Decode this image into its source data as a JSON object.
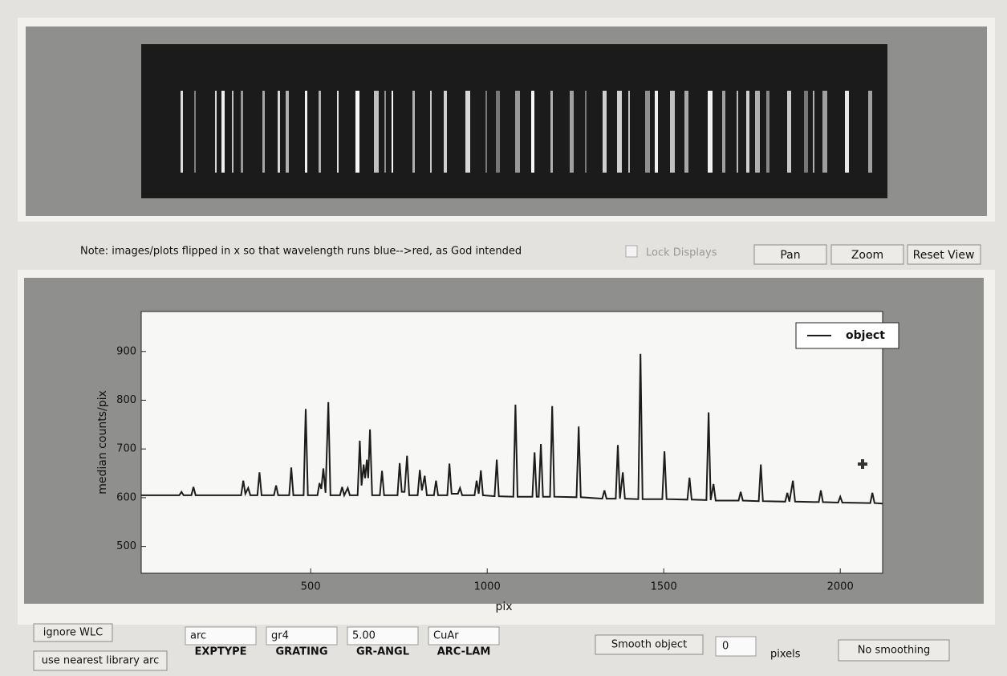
{
  "toolbar": {
    "note": "Note: images/plots flipped in x so that wavelength runs blue-->red, as God intended",
    "lock_displays": "Lock Displays",
    "buttons": [
      "Pan",
      "Zoom",
      "Reset View"
    ]
  },
  "chart_data": {
    "type": "line",
    "xlabel": "pix",
    "ylabel": "median counts/pix",
    "x": [
      20,
      128,
      134,
      140,
      162,
      168,
      174,
      303,
      309,
      315,
      323,
      329,
      349,
      355,
      361,
      396,
      402,
      408,
      439,
      445,
      451,
      480,
      486,
      492,
      519,
      525,
      530,
      536,
      542,
      550,
      556,
      583,
      589,
      595,
      605,
      611,
      633,
      639,
      644,
      650,
      654,
      659,
      663,
      668,
      674,
      696,
      702,
      708,
      746,
      752,
      758,
      766,
      773,
      779,
      803,
      809,
      815,
      823,
      829,
      849,
      855,
      861,
      887,
      893,
      899,
      917,
      923,
      929,
      964,
      970,
      976,
      982,
      988,
      1021,
      1027,
      1033,
      1074,
      1080,
      1086,
      1128,
      1134,
      1140,
      1146,
      1152,
      1158,
      1178,
      1184,
      1190,
      1253,
      1259,
      1265,
      1326,
      1332,
      1338,
      1364,
      1370,
      1376,
      1384,
      1390,
      1428,
      1434,
      1440,
      1496,
      1502,
      1508,
      1567,
      1573,
      1579,
      1621,
      1627,
      1633,
      1641,
      1647,
      1712,
      1718,
      1724,
      1769,
      1775,
      1781,
      1844,
      1850,
      1856,
      1866,
      1872,
      1939,
      1945,
      1951,
      1994,
      2000,
      2006,
      2085,
      2091,
      2097,
      2120
    ],
    "series": [
      {
        "name": "object",
        "color": "#1c1c1c",
        "values": [
          605,
          605,
          612,
          605,
          605,
          622,
          605,
          605,
          635,
          608,
          620,
          605,
          605,
          652,
          605,
          605,
          625,
          605,
          605,
          662,
          605,
          605,
          782,
          605,
          605,
          630,
          618,
          660,
          610,
          796,
          605,
          605,
          622,
          605,
          620,
          605,
          605,
          717,
          625,
          668,
          640,
          678,
          640,
          740,
          605,
          605,
          655,
          605,
          605,
          671,
          612,
          612,
          686,
          605,
          605,
          657,
          615,
          645,
          605,
          605,
          635,
          605,
          605,
          670,
          608,
          608,
          620,
          605,
          605,
          635,
          608,
          656,
          605,
          603,
          678,
          603,
          602,
          791,
          602,
          602,
          693,
          602,
          602,
          710,
          602,
          602,
          788,
          602,
          601,
          746,
          601,
          598,
          615,
          598,
          598,
          708,
          598,
          652,
          598,
          597,
          895,
          597,
          597,
          695,
          597,
          596,
          641,
          596,
          595,
          775,
          595,
          628,
          594,
          594,
          612,
          594,
          593,
          668,
          593,
          592,
          610,
          592,
          635,
          592,
          591,
          615,
          591,
          590,
          602,
          590,
          589,
          610,
          589,
          588
        ]
      }
    ],
    "xlim": [
      20,
      2120
    ],
    "ylim": [
      445,
      982
    ],
    "xticks": [
      500,
      1000,
      1500,
      2000
    ],
    "yticks": [
      500,
      600,
      700,
      800,
      900
    ],
    "legend": "upper right",
    "grid": false
  },
  "controls": {
    "left_buttons": [
      "ignore WLC",
      "use nearest library arc"
    ],
    "fields": [
      {
        "value": "arc",
        "label": "EXPTYPE"
      },
      {
        "value": "gr4",
        "label": "GRATING"
      },
      {
        "value": "5.00",
        "label": "GR-ANGL"
      },
      {
        "value": "CuAr",
        "label": "ARC-LAM"
      }
    ],
    "smooth_button": "Smooth object",
    "smooth_value": 0,
    "smooth_unit": "pixels",
    "no_smoothing": "No smoothing"
  }
}
